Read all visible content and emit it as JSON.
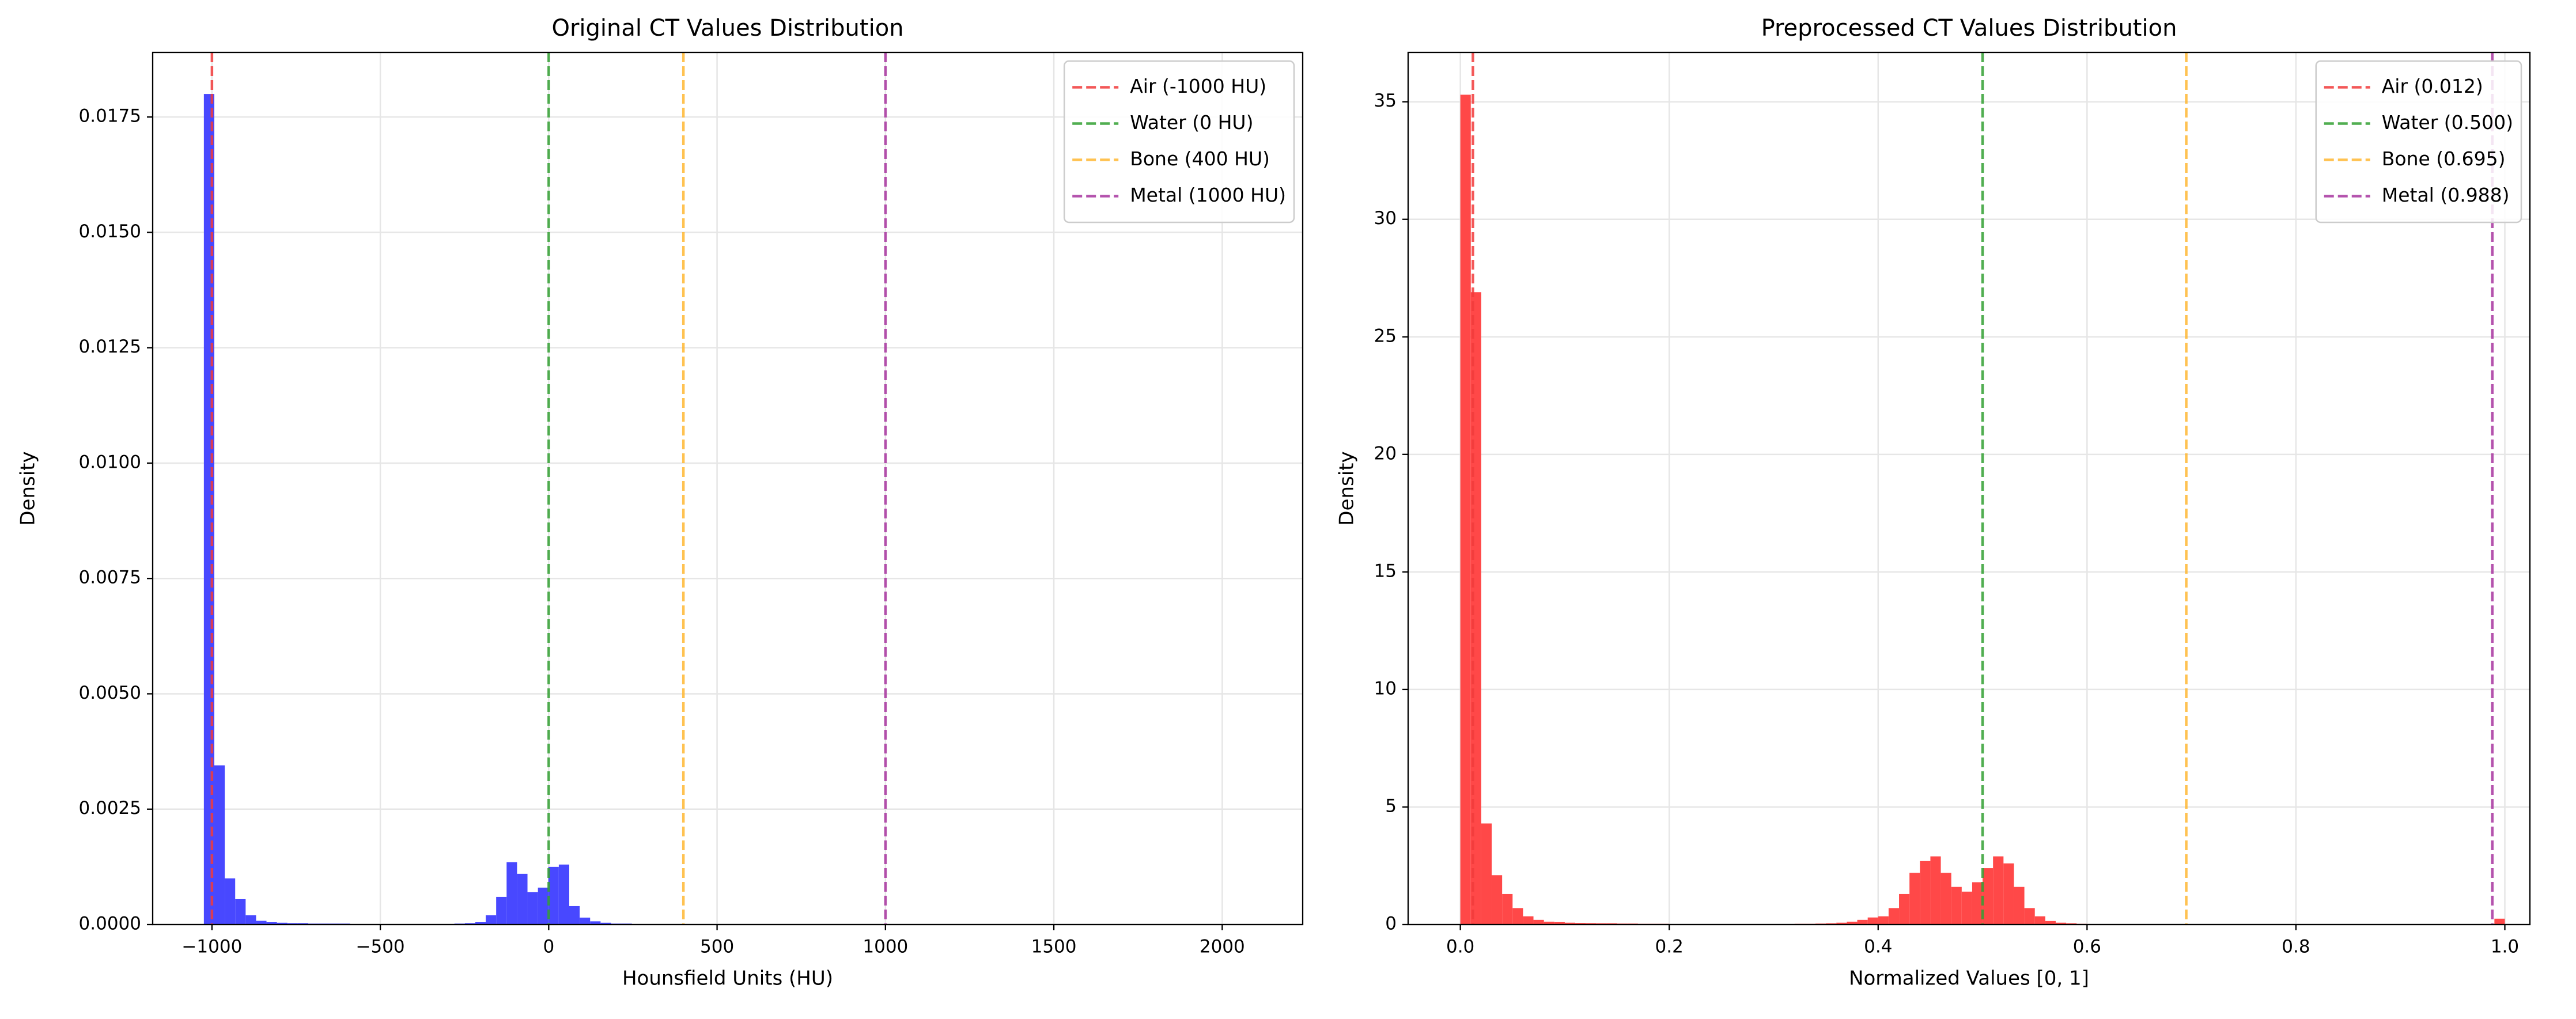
{
  "chart_data": [
    {
      "type": "histogram",
      "title": "Original CT Values Distribution",
      "x_label": "Hounsfield Units (HU)",
      "y_label": "Density",
      "color": "#4848ff",
      "grid": true,
      "legend": "upper right",
      "bins": [
        -1024,
        -993,
        -962,
        -931,
        -900,
        -869,
        -838,
        -807,
        -776,
        -745,
        -714,
        -683,
        -652,
        -621,
        -590,
        -559,
        -528,
        -497,
        -466,
        -435,
        -404,
        -373,
        -342,
        -311,
        -280,
        -249,
        -218,
        -187,
        -156,
        -125,
        -94,
        -63,
        -32,
        -1,
        30,
        61,
        92,
        123,
        154,
        185,
        216,
        247,
        278,
        309,
        340,
        371,
        402,
        433,
        464,
        495,
        526,
        557,
        588,
        619,
        650,
        681,
        712,
        743,
        774,
        805,
        836,
        867,
        898,
        929,
        960,
        991,
        1022,
        1053,
        1084,
        1115,
        1146,
        1177,
        1208,
        1239,
        1270,
        1301,
        1332,
        1363,
        1394,
        1425,
        1456,
        1487,
        1518,
        1549,
        1580,
        1611,
        1642,
        1673,
        1704,
        1735,
        1766,
        1797,
        1828,
        1859,
        1890,
        1921,
        1952,
        1983,
        2014,
        2045,
        2076
      ],
      "values": [
        0.018,
        0.00345,
        0.001,
        0.00055,
        0.0002,
        8e-05,
        5e-05,
        4e-05,
        3e-05,
        3e-05,
        2e-05,
        2e-05,
        2e-05,
        2e-05,
        1e-05,
        1e-05,
        1e-05,
        1e-05,
        1e-05,
        1e-05,
        1e-05,
        1e-05,
        1e-05,
        1e-05,
        2e-05,
        3e-05,
        5e-05,
        0.0002,
        0.0006,
        0.00135,
        0.0011,
        0.0007,
        0.0008,
        0.00125,
        0.0013,
        0.0004,
        0.00015,
        7e-05,
        4e-05,
        2e-05,
        2e-05,
        1e-05,
        1e-05,
        1e-05,
        1e-05,
        1e-05,
        0,
        0,
        0,
        0,
        0,
        0,
        0,
        0,
        0,
        0,
        0,
        0,
        0,
        0,
        0,
        0,
        0,
        0,
        0,
        0,
        0,
        0,
        0,
        0,
        0,
        0,
        0,
        0,
        0,
        0,
        0,
        0,
        0,
        0,
        0,
        0,
        0,
        0,
        0,
        0,
        0,
        0,
        0,
        0,
        0,
        0,
        0,
        0,
        0,
        0,
        0,
        0,
        0,
        1e-05
      ],
      "vlines": [
        {
          "label": "Air (-1000 HU)",
          "x": -1000,
          "color": "#f23c3c"
        },
        {
          "label": "Water (0 HU)",
          "x": 0,
          "color": "#33a033"
        },
        {
          "label": "Bone (400 HU)",
          "x": 400,
          "color": "#ffb833"
        },
        {
          "label": "Metal (1000 HU)",
          "x": 1000,
          "color": "#a8359f"
        }
      ],
      "xlim": [
        -1176,
        2239
      ],
      "ylim": [
        0,
        0.0189
      ],
      "xticks": [
        {
          "value": -1000,
          "label": "−1000"
        },
        {
          "value": -500,
          "label": "−500"
        },
        0,
        500,
        1000,
        1500,
        2000
      ],
      "yticks": [
        {
          "value": 0,
          "label": "0.0000"
        },
        {
          "value": 0.0025,
          "label": "0.0025"
        },
        {
          "value": 0.005,
          "label": "0.0050"
        },
        {
          "value": 0.0075,
          "label": "0.0075"
        },
        {
          "value": 0.01,
          "label": "0.0100"
        },
        {
          "value": 0.0125,
          "label": "0.0125"
        },
        {
          "value": 0.015,
          "label": "0.0150"
        },
        {
          "value": 0.0175,
          "label": "0.0175"
        }
      ]
    },
    {
      "type": "histogram",
      "title": "Preprocessed CT Values Distribution",
      "x_label": "Normalized Values [0, 1]",
      "y_label": "Density",
      "color": "#ff4848",
      "grid": true,
      "legend": "upper right",
      "bins": [
        0,
        0.01,
        0.02,
        0.03,
        0.04,
        0.05,
        0.06,
        0.07,
        0.08,
        0.09,
        0.1,
        0.11,
        0.12,
        0.13,
        0.14,
        0.15,
        0.16,
        0.17,
        0.18,
        0.19,
        0.2,
        0.21,
        0.22,
        0.23,
        0.24,
        0.25,
        0.26,
        0.27,
        0.28,
        0.29,
        0.3,
        0.31,
        0.32,
        0.33,
        0.34,
        0.35,
        0.36,
        0.37,
        0.38,
        0.39,
        0.4,
        0.41,
        0.42,
        0.43,
        0.44,
        0.45,
        0.46,
        0.47,
        0.48,
        0.49,
        0.5,
        0.51,
        0.52,
        0.53,
        0.54,
        0.55,
        0.56,
        0.57,
        0.58,
        0.59,
        0.6,
        0.61,
        0.62,
        0.63,
        0.64,
        0.65,
        0.66,
        0.67,
        0.68,
        0.69,
        0.7,
        0.71,
        0.72,
        0.73,
        0.74,
        0.75,
        0.76,
        0.77,
        0.78,
        0.79,
        0.8,
        0.81,
        0.82,
        0.83,
        0.84,
        0.85,
        0.86,
        0.87,
        0.88,
        0.89,
        0.9,
        0.91,
        0.92,
        0.93,
        0.94,
        0.95,
        0.96,
        0.97,
        0.98,
        0.99,
        1
      ],
      "values": [
        35.3,
        26.9,
        4.3,
        2.1,
        1.3,
        0.7,
        0.35,
        0.2,
        0.12,
        0.1,
        0.08,
        0.07,
        0.06,
        0.05,
        0.05,
        0.04,
        0.04,
        0.03,
        0.03,
        0.03,
        0.02,
        0.02,
        0.02,
        0.02,
        0.02,
        0.02,
        0.02,
        0.02,
        0.02,
        0.02,
        0.02,
        0.02,
        0.03,
        0.03,
        0.04,
        0.05,
        0.08,
        0.12,
        0.2,
        0.3,
        0.35,
        0.7,
        1.3,
        2.2,
        2.7,
        2.9,
        2.2,
        1.6,
        1.4,
        1.8,
        2.4,
        2.9,
        2.6,
        1.6,
        0.7,
        0.35,
        0.15,
        0.08,
        0.05,
        0.03,
        0.02,
        0.01,
        0.01,
        0.01,
        0.01,
        0.01,
        0.01,
        0.01,
        0.01,
        0.01,
        0.01,
        0.01,
        0.01,
        0.01,
        0.01,
        0.01,
        0.01,
        0.01,
        0.01,
        0.01,
        0.01,
        0.01,
        0.01,
        0.01,
        0.01,
        0.01,
        0.01,
        0.01,
        0.01,
        0.01,
        0.01,
        0.01,
        0.01,
        0.01,
        0.01,
        0.01,
        0.01,
        0.01,
        0.01,
        0.25
      ],
      "vlines": [
        {
          "label": "Air (0.012)",
          "x": 0.012,
          "color": "#f23c3c"
        },
        {
          "label": "Water (0.500)",
          "x": 0.5,
          "color": "#33a033"
        },
        {
          "label": "Bone (0.695)",
          "x": 0.695,
          "color": "#ffb833"
        },
        {
          "label": "Metal (0.988)",
          "x": 0.988,
          "color": "#a8359f"
        }
      ],
      "xlim": [
        -0.05,
        1.024
      ],
      "ylim": [
        0,
        37.1
      ],
      "xticks": [
        {
          "value": 0,
          "label": "0.0"
        },
        0.2,
        0.4,
        0.6,
        0.8,
        {
          "value": 1,
          "label": "1.0"
        }
      ],
      "yticks": [
        0,
        5,
        10,
        15,
        20,
        25,
        30,
        35
      ]
    }
  ]
}
